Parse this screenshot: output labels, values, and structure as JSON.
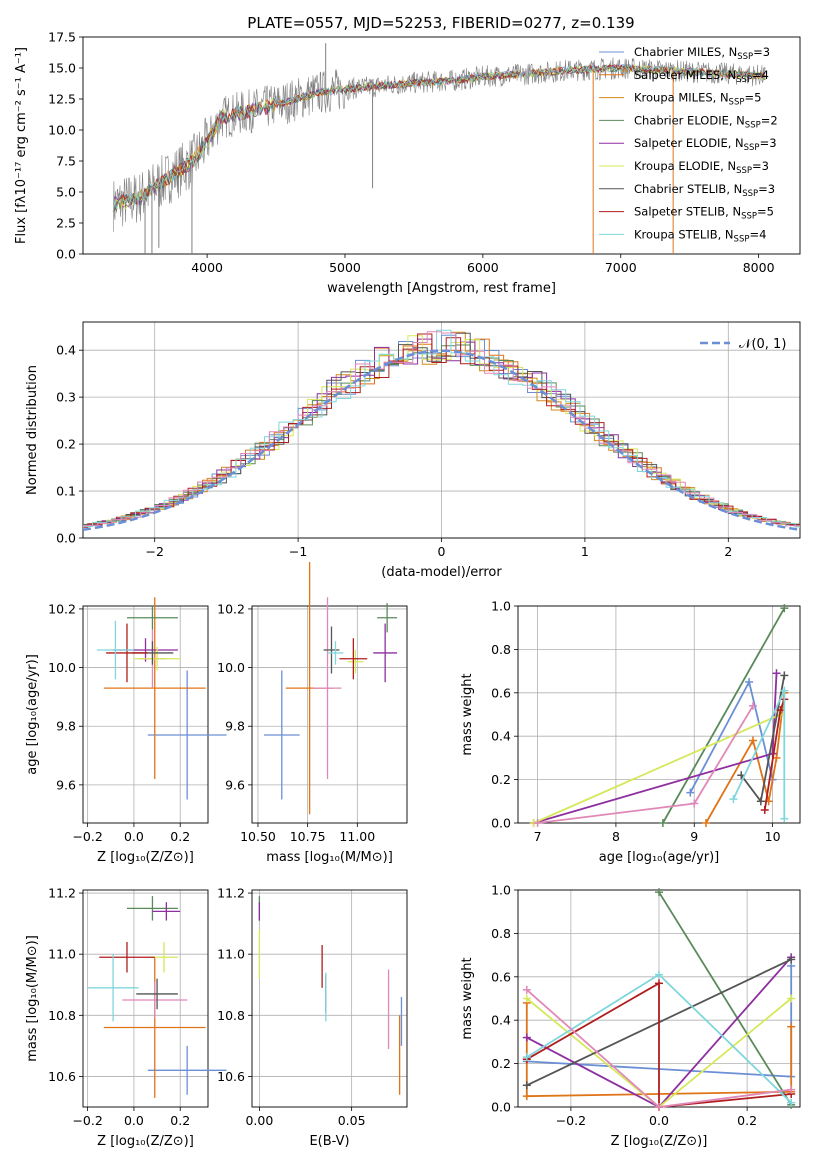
{
  "figure": {
    "title": "PLATE=0557, MJD=52253, FIBERID=0277, z=0.139"
  },
  "models": [
    {
      "name": "Chabrier MILES",
      "label": "Chabrier MILES, N",
      "nssp": "=3",
      "color": "#6b8fd6"
    },
    {
      "name": "Salpeter MILES",
      "label": "Salpeter MILES, N",
      "nssp": "=4",
      "color": "#e07418"
    },
    {
      "name": "Kroupa MILES",
      "label": "Kroupa MILES, N",
      "nssp": "=5",
      "color": "#d28a1e"
    },
    {
      "name": "Chabrier ELODIE",
      "label": "Chabrier ELODIE, N",
      "nssp": "=2",
      "color": "#5a8a5a"
    },
    {
      "name": "Salpeter ELODIE",
      "label": "Salpeter ELODIE, N",
      "nssp": "=3",
      "color": "#8e2fa0"
    },
    {
      "name": "Kroupa ELODIE",
      "label": "Kroupa ELODIE, N",
      "nssp": "=3",
      "color": "#d6e85a"
    },
    {
      "name": "Chabrier STELIB",
      "label": "Chabrier STELIB, N",
      "nssp": "=3",
      "color": "#555555"
    },
    {
      "name": "Salpeter STELIB",
      "label": "Salpeter STELIB, N",
      "nssp": "=5",
      "color": "#b01e1e"
    },
    {
      "name": "Kroupa STELIB",
      "label": "Kroupa STELIB, N",
      "nssp": "=4",
      "color": "#7fd6dc"
    }
  ],
  "extra_colors": {
    "pink": "#e088b8",
    "data": "#808080"
  },
  "chart_data": [
    {
      "id": "spectrum",
      "type": "line",
      "xlabel": "wavelength [Angstrom, rest frame]",
      "ylabel": "Flux [fλ10⁻¹⁷ erg cm⁻² s⁻¹ A⁻¹]",
      "xlim": [
        3100,
        8300
      ],
      "ylim": [
        0,
        17.5
      ],
      "xticks": [
        4000,
        5000,
        6000,
        7000,
        8000
      ],
      "yticks": [
        0.0,
        2.5,
        5.0,
        7.5,
        10.0,
        12.5,
        15.0,
        17.5
      ],
      "ytick_labels": [
        "0.0",
        "2.5",
        "5.0",
        "7.5",
        "10.0",
        "12.5",
        "15.0",
        "17.5"
      ],
      "continuum": [
        [
          3320,
          4.0
        ],
        [
          3500,
          4.5
        ],
        [
          3700,
          6.0
        ],
        [
          3900,
          7.5
        ],
        [
          4000,
          9.0
        ],
        [
          4100,
          11.0
        ],
        [
          4300,
          11.5
        ],
        [
          4500,
          12.0
        ],
        [
          4800,
          13.0
        ],
        [
          5000,
          13.3
        ],
        [
          5200,
          13.5
        ],
        [
          5500,
          13.8
        ],
        [
          5800,
          14.0
        ],
        [
          6000,
          14.3
        ],
        [
          6300,
          14.5
        ],
        [
          6600,
          14.8
        ],
        [
          7000,
          15.0
        ],
        [
          7500,
          14.7
        ],
        [
          8000,
          14.4
        ],
        [
          8050,
          14.3
        ]
      ],
      "spikes": [
        [
          3550,
          0
        ],
        [
          3600,
          0
        ],
        [
          3650,
          0.5
        ],
        [
          3890,
          0
        ],
        [
          4860,
          17.0
        ],
        [
          5200,
          5.3
        ],
        [
          6800,
          0
        ],
        [
          7380,
          0
        ]
      ],
      "grid": false,
      "legend": "top-right"
    },
    {
      "id": "residuals",
      "type": "line",
      "xlabel": "(data-model)/error",
      "ylabel": "Normed distribution",
      "xlim": [
        -2.5,
        2.5
      ],
      "ylim": [
        0,
        0.46
      ],
      "xticks": [
        -2,
        -1,
        0,
        1,
        2
      ],
      "xtick_labels": [
        "−2",
        "−1",
        "0",
        "1",
        "2"
      ],
      "yticks": [
        0.0,
        0.1,
        0.2,
        0.3,
        0.4
      ],
      "ytick_labels": [
        "0.0",
        "0.1",
        "0.2",
        "0.3",
        "0.4"
      ],
      "normal_label": "𝒩(0, 1)",
      "grid": true,
      "legend": "top-right"
    },
    {
      "id": "age_vs_Z",
      "type": "scatter",
      "xlabel": "Z [log₁₀(Z/Z⊙)]",
      "ylabel": "age  [log₁₀(age/yr)]",
      "xlim": [
        -0.22,
        0.32
      ],
      "ylim": [
        9.47,
        10.21
      ],
      "xticks": [
        -0.2,
        0.0,
        0.2
      ],
      "xtick_labels": [
        "−0.2",
        "0.0",
        "0.2"
      ],
      "yticks": [
        9.6,
        9.8,
        10.0,
        10.2
      ],
      "ytick_labels": [
        "9.6",
        "9.8",
        "10.0",
        "10.2"
      ],
      "points": [
        {
          "x": 0.23,
          "y": 9.77,
          "xerr": 0.17,
          "yerr": 0.22,
          "c": "#6b8fd6"
        },
        {
          "x": 0.09,
          "y": 9.93,
          "xerr": 0.22,
          "yerr": 0.31,
          "c": "#e07418"
        },
        {
          "x": 0.08,
          "y": 10.03,
          "xerr": 0.06,
          "yerr": 0.1,
          "c": "#e088b8"
        },
        {
          "x": 0.08,
          "y": 10.17,
          "xerr": 0.11,
          "yerr": 0.04,
          "c": "#5a8a5a"
        },
        {
          "x": 0.05,
          "y": 10.06,
          "xerr": 0.14,
          "yerr": 0.04,
          "c": "#8e2fa0"
        },
        {
          "x": 0.1,
          "y": 10.03,
          "xerr": 0.1,
          "yerr": 0.04,
          "c": "#d6e85a"
        },
        {
          "x": 0.08,
          "y": 10.05,
          "xerr": 0.09,
          "yerr": 0.04,
          "c": "#555555"
        },
        {
          "x": -0.03,
          "y": 10.05,
          "xerr": 0.09,
          "yerr": 0.1,
          "c": "#b01e1e"
        },
        {
          "x": -0.08,
          "y": 10.06,
          "xerr": 0.08,
          "yerr": 0.1,
          "c": "#7fd6dc"
        }
      ]
    },
    {
      "id": "age_vs_mass",
      "type": "scatter",
      "xlabel": "mass [log₁₀(M/M⊙)]",
      "ylabel": "",
      "xlim": [
        10.47,
        11.25
      ],
      "ylim": [
        9.47,
        10.21
      ],
      "xticks": [
        10.5,
        10.75,
        11.0
      ],
      "xtick_labels": [
        "10.50",
        "10.75",
        "11.00"
      ],
      "yticks": [
        9.6,
        9.8,
        10.0,
        10.2
      ],
      "ytick_labels": [
        "9.6",
        "9.8",
        "10.0",
        "10.2"
      ],
      "points": [
        {
          "x": 10.62,
          "y": 9.77,
          "xerr": 0.09,
          "yerr": 0.22,
          "c": "#6b8fd6"
        },
        {
          "x": 10.76,
          "y": 9.93,
          "xerr": 0.12,
          "yerr": 0.43,
          "c": "#e07418"
        },
        {
          "x": 10.85,
          "y": 9.93,
          "xerr": 0.07,
          "yerr": 0.31,
          "c": "#e088b8"
        },
        {
          "x": 11.15,
          "y": 10.17,
          "xerr": 0.05,
          "yerr": 0.05,
          "c": "#5a8a5a"
        },
        {
          "x": 11.14,
          "y": 10.05,
          "xerr": 0.06,
          "yerr": 0.1,
          "c": "#8e2fa0"
        },
        {
          "x": 10.99,
          "y": 10.02,
          "xerr": 0.04,
          "yerr": 0.04,
          "c": "#d6e85a"
        },
        {
          "x": 10.87,
          "y": 10.06,
          "xerr": 0.04,
          "yerr": 0.08,
          "c": "#555555"
        },
        {
          "x": 10.98,
          "y": 10.03,
          "xerr": 0.07,
          "yerr": 0.07,
          "c": "#b01e1e"
        },
        {
          "x": 10.89,
          "y": 10.05,
          "xerr": 0.04,
          "yerr": 0.04,
          "c": "#7fd6dc"
        }
      ]
    },
    {
      "id": "weight_vs_age",
      "type": "line",
      "xlabel": "age  [log₁₀(age/yr)]",
      "ylabel": "mass weight",
      "xlim": [
        6.75,
        10.35
      ],
      "ylim": [
        0,
        1
      ],
      "xticks": [
        7,
        8,
        9,
        10
      ],
      "xtick_labels": [
        "7",
        "8",
        "9",
        "10"
      ],
      "yticks": [
        0.0,
        0.2,
        0.4,
        0.6,
        0.8,
        1.0
      ],
      "ytick_labels": [
        "0.0",
        "0.2",
        "0.4",
        "0.6",
        "0.8",
        "1.0"
      ],
      "series": [
        {
          "c": "#6b8fd6",
          "x": [
            8.95,
            9.7,
            10.0
          ],
          "y": [
            0.14,
            0.65,
            0.2
          ]
        },
        {
          "c": "#e07418",
          "x": [
            9.15,
            9.75,
            9.95,
            10.05,
            10.15
          ],
          "y": [
            0.0,
            0.38,
            0.1,
            0.3,
            0.6
          ]
        },
        {
          "c": "#5a8a5a",
          "x": [
            8.6,
            10.15
          ],
          "y": [
            0.0,
            0.99
          ]
        },
        {
          "c": "#8e2fa0",
          "x": [
            6.95,
            10.0,
            10.05
          ],
          "y": [
            0.0,
            0.32,
            0.69
          ]
        },
        {
          "c": "#d6e85a",
          "x": [
            6.95,
            10.1
          ],
          "y": [
            0.0,
            0.5
          ]
        },
        {
          "c": "#555555",
          "x": [
            9.6,
            9.85,
            10.15
          ],
          "y": [
            0.22,
            0.1,
            0.68
          ]
        },
        {
          "c": "#b01e1e",
          "x": [
            9.9,
            10.1,
            10.15
          ],
          "y": [
            0.06,
            0.52,
            0.57
          ]
        },
        {
          "c": "#7fd6dc",
          "x": [
            9.5,
            10.15,
            10.15
          ],
          "y": [
            0.11,
            0.61,
            0.02
          ]
        },
        {
          "c": "#e088b8",
          "x": [
            7.0,
            9.0,
            9.75
          ],
          "y": [
            0.0,
            0.09,
            0.54
          ]
        }
      ]
    },
    {
      "id": "mass_vs_Z",
      "type": "scatter",
      "xlabel": "Z [log₁₀(Z/Z⊙)]",
      "ylabel": "mass [log₁₀(M/M⊙)]",
      "xlim": [
        -0.22,
        0.32
      ],
      "ylim": [
        10.5,
        11.21
      ],
      "xticks": [
        -0.2,
        0.0,
        0.2
      ],
      "xtick_labels": [
        "−0.2",
        "0.0",
        "0.2"
      ],
      "yticks": [
        10.6,
        10.8,
        11.0,
        11.2
      ],
      "ytick_labels": [
        "10.6",
        "10.8",
        "11.0",
        "11.2"
      ],
      "points": [
        {
          "x": 0.23,
          "y": 10.62,
          "xerr": 0.17,
          "yerr": 0.08,
          "c": "#6b8fd6"
        },
        {
          "x": 0.09,
          "y": 10.76,
          "xerr": 0.22,
          "yerr": 0.23,
          "c": "#e07418"
        },
        {
          "x": 0.09,
          "y": 10.85,
          "xerr": 0.14,
          "yerr": 0.06,
          "c": "#e088b8"
        },
        {
          "x": 0.08,
          "y": 11.15,
          "xerr": 0.11,
          "yerr": 0.04,
          "c": "#5a8a5a"
        },
        {
          "x": 0.14,
          "y": 11.14,
          "xerr": 0.06,
          "yerr": 0.03,
          "c": "#8e2fa0"
        },
        {
          "x": 0.13,
          "y": 10.99,
          "xerr": 0.06,
          "yerr": 0.05,
          "c": "#d6e85a"
        },
        {
          "x": 0.1,
          "y": 10.87,
          "xerr": 0.09,
          "yerr": 0.05,
          "c": "#555555"
        },
        {
          "x": -0.03,
          "y": 10.99,
          "xerr": 0.12,
          "yerr": 0.05,
          "c": "#b01e1e"
        },
        {
          "x": -0.09,
          "y": 10.89,
          "xerr": 0.11,
          "yerr": 0.11,
          "c": "#7fd6dc"
        }
      ]
    },
    {
      "id": "mass_vs_EBV",
      "type": "scatter",
      "xlabel": "E(B-V)",
      "ylabel": "",
      "xlim": [
        -0.004,
        0.08
      ],
      "ylim": [
        10.5,
        11.21
      ],
      "xticks": [
        0.0,
        0.05
      ],
      "xtick_labels": [
        "0.00",
        "0.05"
      ],
      "yticks": [
        10.6,
        10.8,
        11.0,
        11.2
      ],
      "ytick_labels": [
        "10.6",
        "10.8",
        "11.0",
        "11.2"
      ],
      "points": [
        {
          "x": 0.077,
          "y": 10.78,
          "xerr": 0.0,
          "yerr": 0.08,
          "c": "#6b8fd6"
        },
        {
          "x": 0.076,
          "y": 10.67,
          "xerr": 0.0,
          "yerr": 0.13,
          "c": "#e07418"
        },
        {
          "x": 0.07,
          "y": 10.82,
          "xerr": 0.0,
          "yerr": 0.13,
          "c": "#e088b8"
        },
        {
          "x": 0.0,
          "y": 11.15,
          "xerr": 0.0,
          "yerr": 0.04,
          "c": "#5a8a5a"
        },
        {
          "x": 0.0,
          "y": 11.14,
          "xerr": 0.0,
          "yerr": 0.03,
          "c": "#8e2fa0"
        },
        {
          "x": 0.0,
          "y": 11.0,
          "xerr": 0.0,
          "yerr": 0.08,
          "c": "#d6e85a"
        },
        {
          "x": 0.036,
          "y": 10.87,
          "xerr": 0.0,
          "yerr": 0.06,
          "c": "#555555"
        },
        {
          "x": 0.034,
          "y": 10.96,
          "xerr": 0.0,
          "yerr": 0.07,
          "c": "#b01e1e"
        },
        {
          "x": 0.036,
          "y": 10.86,
          "xerr": 0.0,
          "yerr": 0.08,
          "c": "#7fd6dc"
        }
      ]
    },
    {
      "id": "weight_vs_Z",
      "type": "line",
      "xlabel": "Z [log₁₀(Z/Z⊙)]",
      "ylabel": "mass weight",
      "xlim": [
        -0.32,
        0.32
      ],
      "ylim": [
        0,
        1
      ],
      "xticks": [
        -0.2,
        0.0,
        0.2
      ],
      "xtick_labels": [
        "−0.2",
        "0.0",
        "0.2"
      ],
      "yticks": [
        0.0,
        0.2,
        0.4,
        0.6,
        0.8,
        1.0
      ],
      "ytick_labels": [
        "0.0",
        "0.2",
        "0.4",
        "0.6",
        "0.8",
        "1.0"
      ],
      "series": [
        {
          "c": "#6b8fd6",
          "x": [
            -0.3,
            0.3,
            0.3
          ],
          "y": [
            0.21,
            0.14,
            0.65
          ]
        },
        {
          "c": "#e07418",
          "x": [
            -0.3,
            -0.3,
            0.3,
            0.3
          ],
          "y": [
            0.48,
            0.05,
            0.07,
            0.37
          ]
        },
        {
          "c": "#5a8a5a",
          "x": [
            0.0,
            0.3
          ],
          "y": [
            0.99,
            0.01
          ]
        },
        {
          "c": "#8e2fa0",
          "x": [
            -0.3,
            0.0,
            0.3
          ],
          "y": [
            0.32,
            0.0,
            0.69
          ]
        },
        {
          "c": "#d6e85a",
          "x": [
            -0.3,
            0.0,
            0.3
          ],
          "y": [
            0.5,
            0.0,
            0.5
          ]
        },
        {
          "c": "#555555",
          "x": [
            -0.3,
            0.3
          ],
          "y": [
            0.1,
            0.68
          ]
        },
        {
          "c": "#b01e1e",
          "x": [
            -0.3,
            0.0,
            0.0,
            0.3
          ],
          "y": [
            0.22,
            0.57,
            0.0,
            0.06
          ]
        },
        {
          "c": "#7fd6dc",
          "x": [
            -0.3,
            0.0,
            0.3
          ],
          "y": [
            0.23,
            0.61,
            0.02
          ]
        },
        {
          "c": "#e088b8",
          "x": [
            -0.3,
            0.0,
            0.3
          ],
          "y": [
            0.54,
            0.0,
            0.08
          ]
        }
      ]
    }
  ]
}
